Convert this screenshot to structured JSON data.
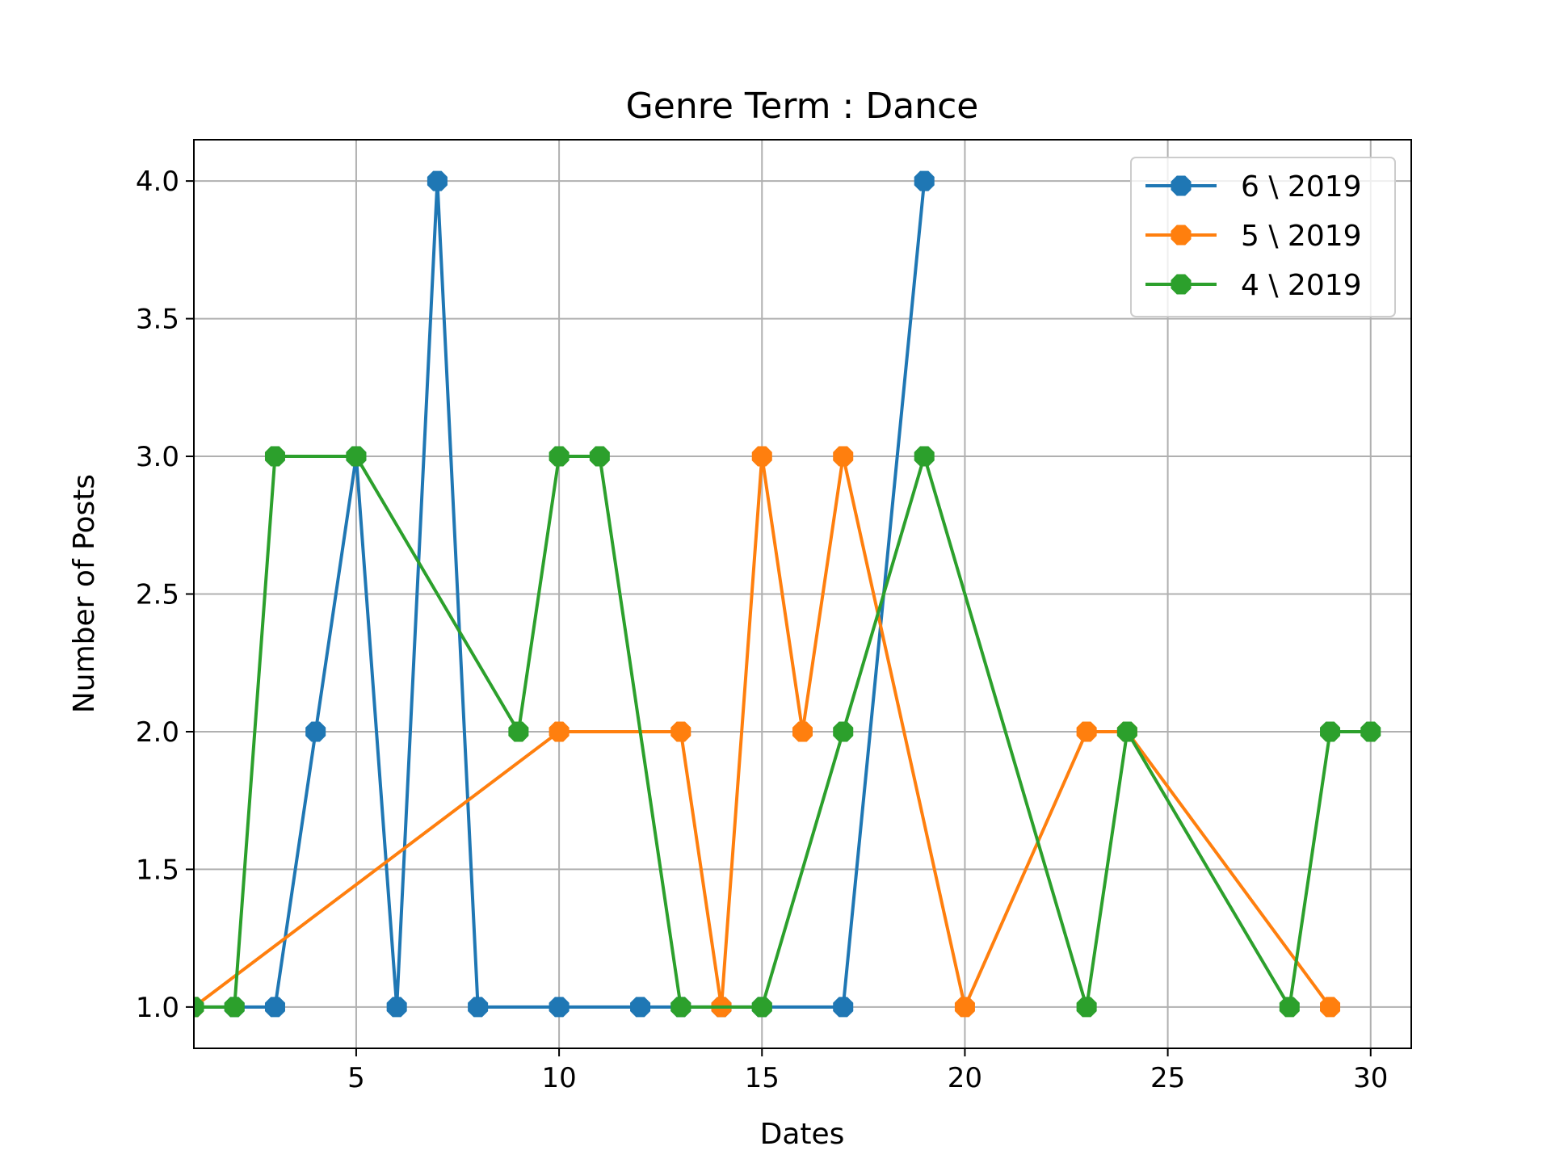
{
  "chart_data": {
    "type": "line",
    "title": "Genre Term : Dance",
    "xlabel": "Dates",
    "ylabel": "Number of Posts",
    "xlim": [
      1,
      31
    ],
    "ylim": [
      0.85,
      4.15
    ],
    "xticks": [
      5,
      10,
      15,
      20,
      25,
      30
    ],
    "yticks": [
      1.0,
      1.5,
      2.0,
      2.5,
      3.0,
      3.5,
      4.0
    ],
    "xtick_labels": [
      "5",
      "10",
      "15",
      "20",
      "25",
      "30"
    ],
    "ytick_labels": [
      "1.0",
      "1.5",
      "2.0",
      "2.5",
      "3.0",
      "3.5",
      "4.0"
    ],
    "grid": true,
    "legend_position": "top-right",
    "series": [
      {
        "name": "6 \\ 2019",
        "color": "#1f77b4",
        "x": [
          1,
          2,
          3,
          4,
          5,
          6,
          7,
          8,
          10,
          12,
          13,
          14,
          15,
          17,
          19
        ],
        "y": [
          1,
          1,
          1,
          2,
          3,
          1,
          4,
          1,
          1,
          1,
          1,
          1,
          1,
          1,
          4
        ]
      },
      {
        "name": "5 \\ 2019",
        "color": "#ff7f0e",
        "x": [
          1,
          10,
          13,
          14,
          15,
          16,
          17,
          20,
          23,
          24,
          29
        ],
        "y": [
          1,
          2,
          2,
          1,
          3,
          2,
          3,
          1,
          2,
          2,
          1
        ]
      },
      {
        "name": "4 \\ 2019",
        "color": "#2ca02c",
        "x": [
          1,
          2,
          3,
          5,
          9,
          10,
          11,
          13,
          15,
          17,
          19,
          23,
          24,
          28,
          29,
          30
        ],
        "y": [
          1,
          1,
          3,
          3,
          2,
          3,
          3,
          1,
          1,
          2,
          3,
          1,
          2,
          1,
          2,
          2
        ]
      }
    ]
  }
}
